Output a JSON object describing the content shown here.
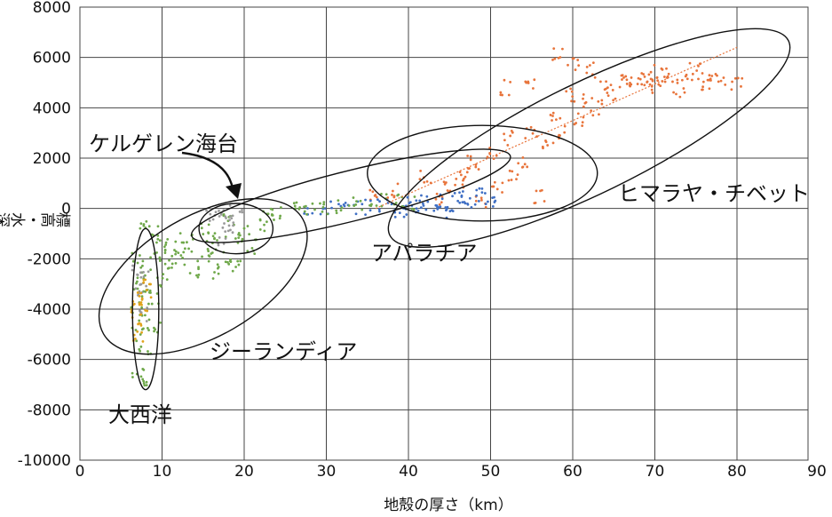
{
  "chart_data": {
    "type": "scatter",
    "title": "",
    "xlabel": "地殻の厚さ（km）",
    "ylabel": "標高・水深（m）",
    "xlim": [
      0,
      90
    ],
    "ylim": [
      -10000,
      8000
    ],
    "x_ticks": [
      0,
      10,
      20,
      30,
      40,
      50,
      60,
      70,
      80,
      90
    ],
    "y_ticks": [
      8000,
      6000,
      4000,
      2000,
      0,
      -2000,
      -4000,
      -6000,
      -8000,
      -10000
    ],
    "grid": true,
    "colors": {
      "orange": "#E8743B",
      "blue": "#3F6FC4",
      "green": "#6FA84A",
      "gray": "#9A9A9A",
      "gold": "#E0A21A"
    },
    "series": [
      {
        "color": "orange",
        "note_points": [
          [
            36,
            500
          ],
          [
            38,
            700
          ],
          [
            42,
            1200
          ],
          [
            45,
            800
          ],
          [
            47,
            1500
          ],
          [
            50,
            2200
          ],
          [
            52,
            2800
          ],
          [
            53,
            1200
          ],
          [
            55,
            3000
          ],
          [
            56,
            500
          ],
          [
            58,
            3800
          ],
          [
            60,
            4500
          ],
          [
            62,
            4300
          ],
          [
            64,
            4800
          ],
          [
            66,
            5000
          ],
          [
            68,
            5200
          ],
          [
            70,
            5400
          ],
          [
            72,
            5100
          ],
          [
            74,
            5300
          ],
          [
            76,
            5000
          ],
          [
            78,
            5200
          ],
          [
            80,
            4900
          ],
          [
            70,
            4800
          ],
          [
            69,
            5000
          ],
          [
            71,
            5300
          ],
          [
            73,
            4700
          ],
          [
            67,
            5100
          ],
          [
            65,
            4600
          ],
          [
            63,
            4000
          ],
          [
            61,
            3500
          ],
          [
            59,
            3000
          ],
          [
            57,
            2500
          ],
          [
            54,
            1800
          ],
          [
            51,
            900
          ],
          [
            49,
            300
          ],
          [
            46,
            1000
          ],
          [
            44,
            400
          ],
          [
            48,
            1800
          ],
          [
            52,
            4800
          ],
          [
            55,
            5000
          ],
          [
            60,
            5800
          ],
          [
            58,
            6100
          ],
          [
            62,
            5500
          ],
          [
            75,
            5600
          ],
          [
            77,
            5300
          ]
        ]
      },
      {
        "color": "blue",
        "note_points": [
          [
            28,
            0
          ],
          [
            30,
            0
          ],
          [
            32,
            0
          ],
          [
            34,
            50
          ],
          [
            36,
            100
          ],
          [
            38,
            150
          ],
          [
            40,
            200
          ],
          [
            42,
            250
          ],
          [
            44,
            300
          ],
          [
            46,
            350
          ],
          [
            48,
            250
          ],
          [
            50,
            300
          ],
          [
            43,
            100
          ],
          [
            41,
            50
          ],
          [
            39,
            -50
          ],
          [
            45,
            -100
          ],
          [
            47,
            400
          ],
          [
            49,
            500
          ]
        ]
      },
      {
        "color": "green",
        "note_points": [
          [
            7,
            -2000
          ],
          [
            7,
            -3000
          ],
          [
            7,
            -4000
          ],
          [
            7,
            -5000
          ],
          [
            8,
            -2500
          ],
          [
            8,
            -3500
          ],
          [
            8,
            -4500
          ],
          [
            8,
            -5500
          ],
          [
            9,
            -2000
          ],
          [
            9,
            -3500
          ],
          [
            10,
            -1500
          ],
          [
            10,
            -2800
          ],
          [
            11,
            -1500
          ],
          [
            12,
            -2000
          ],
          [
            13,
            -1200
          ],
          [
            14,
            -2500
          ],
          [
            15,
            -800
          ],
          [
            16,
            -1500
          ],
          [
            17,
            -1000
          ],
          [
            18,
            -500
          ],
          [
            19,
            -1200
          ],
          [
            20,
            -800
          ],
          [
            21,
            -1500
          ],
          [
            22,
            -600
          ],
          [
            23,
            -300
          ],
          [
            24,
            -100
          ],
          [
            26,
            -50
          ],
          [
            28,
            0
          ],
          [
            30,
            0
          ],
          [
            32,
            100
          ],
          [
            34,
            200
          ],
          [
            36,
            300
          ],
          [
            38,
            400
          ],
          [
            40,
            250
          ],
          [
            18,
            -2000
          ],
          [
            19,
            -2200
          ],
          [
            17,
            -2500
          ],
          [
            15,
            -1800
          ],
          [
            13,
            -1600
          ],
          [
            11,
            -2200
          ],
          [
            9,
            -1000
          ],
          [
            8,
            -700
          ],
          [
            7,
            -6500
          ],
          [
            8,
            -6800
          ],
          [
            9,
            -4800
          ]
        ]
      },
      {
        "color": "gray",
        "note_points": [
          [
            7,
            -2500
          ],
          [
            7,
            -3200
          ],
          [
            8,
            -2800
          ],
          [
            8,
            -4200
          ],
          [
            16,
            -200
          ],
          [
            17,
            -100
          ],
          [
            18,
            -300
          ],
          [
            19,
            -50
          ],
          [
            17,
            -1200
          ],
          [
            18,
            -900
          ]
        ]
      },
      {
        "color": "gold",
        "note_points": [
          [
            7,
            -3500
          ],
          [
            7,
            -4000
          ],
          [
            7,
            -4500
          ],
          [
            8,
            -3800
          ],
          [
            7,
            -5000
          ],
          [
            8,
            -3000
          ]
        ]
      }
    ],
    "trendline": {
      "color": "orange",
      "x": [
        36,
        80
      ],
      "y": [
        0,
        6400
      ]
    },
    "regions": [
      {
        "label": "大西洋",
        "cx": 8,
        "cy": -4000,
        "rx": 1.6,
        "ry": 3200,
        "rotate": 0
      },
      {
        "label": "ジーランディア",
        "cx": 15,
        "cy": -2700,
        "rx": 14,
        "ry": 2400,
        "rotate": -30
      },
      {
        "label": "ケルゲレン海台",
        "cx": 19,
        "cy": -800,
        "rx": 4.5,
        "ry": 1000,
        "rotate": 0
      },
      {
        "label": "アパラチア",
        "cx": 33,
        "cy": 500,
        "rx": 20,
        "ry": 1000,
        "rotate": -14
      },
      {
        "label": "",
        "cx": 49,
        "cy": 1400,
        "rx": 14,
        "ry": 1900,
        "rotate": 0
      },
      {
        "label": "ヒマラヤ・チベット",
        "cx": 62,
        "cy": 2800,
        "rx": 27,
        "ry": 2200,
        "rotate": -26
      }
    ]
  }
}
